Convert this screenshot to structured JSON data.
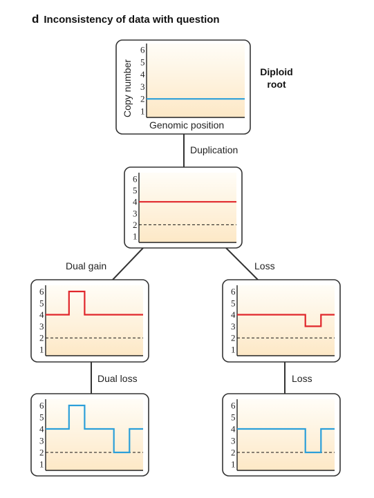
{
  "panel": {
    "letter": "d",
    "title": "Inconsistency of data with question"
  },
  "root": {
    "line1": "Diploid",
    "line2": "root"
  },
  "axes": {
    "ylabel": "Copy number",
    "xlabel": "Genomic position"
  },
  "edges": {
    "duplication": "Duplication",
    "dual_gain": "Dual gain",
    "loss_top": "Loss",
    "dual_loss": "Dual loss",
    "loss_bottom": "Loss"
  },
  "colors": {
    "red": "#e0262b",
    "blue": "#2b9fd9",
    "frame": "#333333",
    "fill_top": "#fffdf7",
    "fill_bottom": "#fde8c6"
  },
  "chart_data": [
    {
      "type": "line",
      "node": "diploid-root",
      "ylim": [
        1,
        6
      ],
      "yticks": [
        1,
        2,
        3,
        4,
        5,
        6
      ],
      "xlabel": "Genomic position",
      "ylabel": "Copy number",
      "series": [
        {
          "color": "blue",
          "x": [
            0,
            1
          ],
          "y": [
            2,
            2
          ]
        }
      ],
      "reference_line": 2
    },
    {
      "type": "line",
      "node": "after-duplication",
      "ylim": [
        1,
        6
      ],
      "yticks": [
        1,
        2,
        3,
        4,
        5,
        6
      ],
      "series": [
        {
          "color": "red",
          "x": [
            0,
            1
          ],
          "y": [
            4,
            4
          ]
        }
      ],
      "reference_line": 2
    },
    {
      "type": "line",
      "node": "after-dual-gain",
      "ylim": [
        1,
        6
      ],
      "yticks": [
        1,
        2,
        3,
        4,
        5,
        6
      ],
      "series": [
        {
          "color": "red",
          "x": [
            0,
            0.24,
            0.24,
            0.4,
            0.4,
            1
          ],
          "y": [
            4,
            4,
            6,
            6,
            4,
            4
          ]
        }
      ],
      "reference_line": 2
    },
    {
      "type": "line",
      "node": "after-loss",
      "ylim": [
        1,
        6
      ],
      "yticks": [
        1,
        2,
        3,
        4,
        5,
        6
      ],
      "series": [
        {
          "color": "red",
          "x": [
            0,
            0.7,
            0.7,
            0.86,
            0.86,
            1
          ],
          "y": [
            4,
            4,
            3,
            3,
            4,
            4
          ]
        }
      ],
      "reference_line": 2
    },
    {
      "type": "line",
      "node": "after-dual-loss",
      "ylim": [
        1,
        6
      ],
      "yticks": [
        1,
        2,
        3,
        4,
        5,
        6
      ],
      "series": [
        {
          "color": "blue",
          "x": [
            0,
            0.24,
            0.24,
            0.4,
            0.4,
            0.7,
            0.7,
            0.86,
            0.86,
            1
          ],
          "y": [
            4,
            4,
            6,
            6,
            4,
            4,
            2,
            2,
            4,
            4
          ]
        }
      ],
      "reference_line": 2
    },
    {
      "type": "line",
      "node": "after-second-loss",
      "ylim": [
        1,
        6
      ],
      "yticks": [
        1,
        2,
        3,
        4,
        5,
        6
      ],
      "series": [
        {
          "color": "blue",
          "x": [
            0,
            0.7,
            0.7,
            0.86,
            0.86,
            1
          ],
          "y": [
            4,
            4,
            2,
            2,
            4,
            4
          ]
        }
      ],
      "reference_line": 2
    }
  ]
}
